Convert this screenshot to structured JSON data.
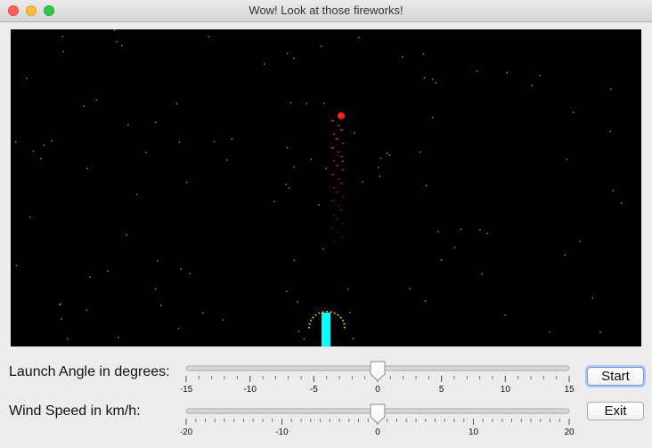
{
  "window": {
    "title": "Wow! Look at those fireworks!"
  },
  "controls": {
    "angle": {
      "label": "Launch Angle in degrees:",
      "min": -15,
      "max": 15,
      "value": 0,
      "major_ticks": [
        "-15",
        "-10",
        "-5",
        "0",
        "5",
        "10",
        "15"
      ],
      "minor_step": 1
    },
    "wind": {
      "label": "Wind Speed in km/h:",
      "min": -20,
      "max": 20,
      "value": 0,
      "major_ticks": [
        "-20",
        "-10",
        "0",
        "10",
        "20"
      ],
      "minor_step": 1
    },
    "start_label": "Start",
    "exit_label": "Exit"
  },
  "colors": {
    "sky": "#000000",
    "launcher": "#00ffff",
    "trail": "#ff2020",
    "sparks": "#ffcc00",
    "stars": "#7a8b9a"
  }
}
